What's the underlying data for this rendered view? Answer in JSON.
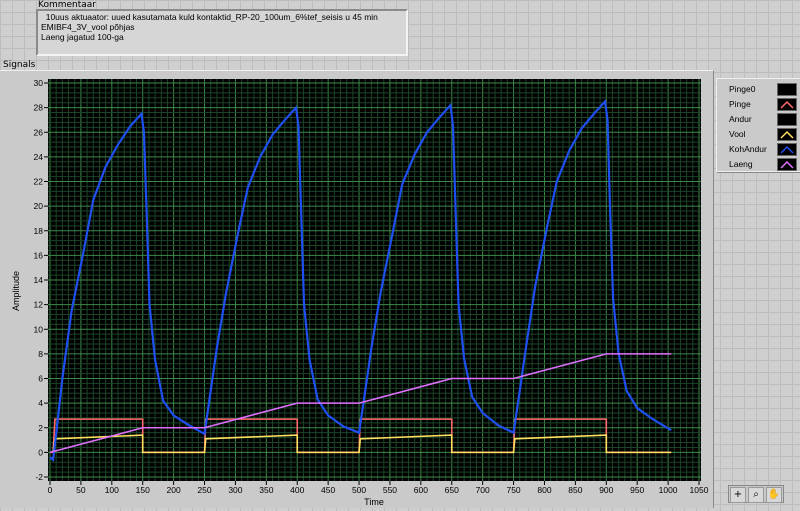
{
  "comment": {
    "label": "Kommentaar",
    "lines": [
      "  10uus aktuaator: uued kasutamata kuld kontaktid_RP-20_100um_6%tef_seisis u 45 min",
      "EMIBF4_3V_vool põhjas",
      "Laeng jagatud 100-ga"
    ]
  },
  "graph": {
    "label": "Signals"
  },
  "tools": [
    "cursor-cross-icon",
    "zoom-icon",
    "pan-hand-icon"
  ],
  "chart_data": {
    "type": "line",
    "title": "",
    "xlabel": "Time",
    "ylabel": "Amplitude",
    "xlim": [
      0,
      1050
    ],
    "ylim": [
      -2,
      30
    ],
    "xticks": [
      0,
      50,
      100,
      150,
      200,
      250,
      300,
      350,
      400,
      450,
      500,
      550,
      600,
      650,
      700,
      750,
      800,
      850,
      900,
      950,
      1000,
      1050
    ],
    "yticks": [
      -2,
      0,
      2,
      4,
      6,
      8,
      10,
      12,
      14,
      16,
      18,
      20,
      22,
      24,
      26,
      28,
      30
    ],
    "grid": true,
    "background": "#000000",
    "legend_position": "right",
    "series": [
      {
        "name": "Pinge0",
        "color": "#000000",
        "points": []
      },
      {
        "name": "Pinge",
        "color": "#ff6a6a",
        "points": [
          [
            0,
            0
          ],
          [
            5,
            0
          ],
          [
            8,
            2.7
          ],
          [
            150,
            2.7
          ],
          [
            150,
            0
          ],
          [
            250,
            0
          ],
          [
            252,
            2.7
          ],
          [
            400,
            2.7
          ],
          [
            400,
            0
          ],
          [
            500,
            0
          ],
          [
            502,
            2.7
          ],
          [
            650,
            2.7
          ],
          [
            650,
            0
          ],
          [
            750,
            0
          ],
          [
            752,
            2.7
          ],
          [
            900,
            2.7
          ],
          [
            900,
            0
          ],
          [
            1005,
            0
          ]
        ]
      },
      {
        "name": "Andur",
        "color": "#000000",
        "points": []
      },
      {
        "name": "Vool",
        "color": "#ffe060",
        "points": [
          [
            5,
            0
          ],
          [
            8,
            1.1
          ],
          [
            150,
            1.4
          ],
          [
            150,
            0
          ],
          [
            250,
            0
          ],
          [
            252,
            1.1
          ],
          [
            400,
            1.4
          ],
          [
            400,
            0
          ],
          [
            500,
            0
          ],
          [
            502,
            1.1
          ],
          [
            650,
            1.4
          ],
          [
            650,
            0
          ],
          [
            750,
            0
          ],
          [
            752,
            1.1
          ],
          [
            900,
            1.4
          ],
          [
            900,
            0
          ],
          [
            1005,
            0
          ]
        ]
      },
      {
        "name": "KohAndur",
        "color": "#1f4ff0",
        "points": [
          [
            0,
            -0.4
          ],
          [
            5,
            -0.6
          ],
          [
            10,
            1.5
          ],
          [
            20,
            6
          ],
          [
            35,
            11.5
          ],
          [
            55,
            16.5
          ],
          [
            70,
            20.5
          ],
          [
            90,
            23.2
          ],
          [
            110,
            25
          ],
          [
            130,
            26.5
          ],
          [
            148,
            27.5
          ],
          [
            152,
            26
          ],
          [
            156,
            20
          ],
          [
            161,
            12
          ],
          [
            170,
            7.5
          ],
          [
            183,
            4.2
          ],
          [
            200,
            3
          ],
          [
            225,
            2.2
          ],
          [
            250,
            1.5
          ],
          [
            260,
            5
          ],
          [
            270,
            8.5
          ],
          [
            285,
            13
          ],
          [
            305,
            18
          ],
          [
            320,
            21.5
          ],
          [
            340,
            24
          ],
          [
            360,
            25.8
          ],
          [
            380,
            27
          ],
          [
            398,
            28
          ],
          [
            402,
            26.5
          ],
          [
            406,
            20
          ],
          [
            411,
            12
          ],
          [
            420,
            7.5
          ],
          [
            433,
            4.3
          ],
          [
            450,
            3
          ],
          [
            475,
            2.1
          ],
          [
            500,
            1.6
          ],
          [
            510,
            5
          ],
          [
            520,
            8.5
          ],
          [
            535,
            13
          ],
          [
            555,
            18
          ],
          [
            570,
            21.8
          ],
          [
            590,
            24.2
          ],
          [
            610,
            26
          ],
          [
            630,
            27.2
          ],
          [
            648,
            28.2
          ],
          [
            652,
            26.5
          ],
          [
            656,
            20
          ],
          [
            661,
            12
          ],
          [
            670,
            7.6
          ],
          [
            683,
            4.5
          ],
          [
            700,
            3.2
          ],
          [
            725,
            2.2
          ],
          [
            750,
            1.6
          ],
          [
            760,
            5
          ],
          [
            770,
            8.5
          ],
          [
            785,
            13.5
          ],
          [
            805,
            18.5
          ],
          [
            820,
            22
          ],
          [
            840,
            24.5
          ],
          [
            860,
            26.3
          ],
          [
            880,
            27.5
          ],
          [
            898,
            28.5
          ],
          [
            902,
            27
          ],
          [
            906,
            20
          ],
          [
            911,
            12.5
          ],
          [
            920,
            8
          ],
          [
            933,
            5
          ],
          [
            950,
            3.6
          ],
          [
            975,
            2.7
          ],
          [
            1005,
            1.8
          ]
        ]
      },
      {
        "name": "Laeng",
        "color": "#e070ff",
        "points": [
          [
            0,
            0
          ],
          [
            150,
            2
          ],
          [
            250,
            2
          ],
          [
            400,
            4
          ],
          [
            500,
            4
          ],
          [
            650,
            6
          ],
          [
            750,
            6
          ],
          [
            900,
            8
          ],
          [
            1005,
            8
          ]
        ]
      }
    ]
  }
}
